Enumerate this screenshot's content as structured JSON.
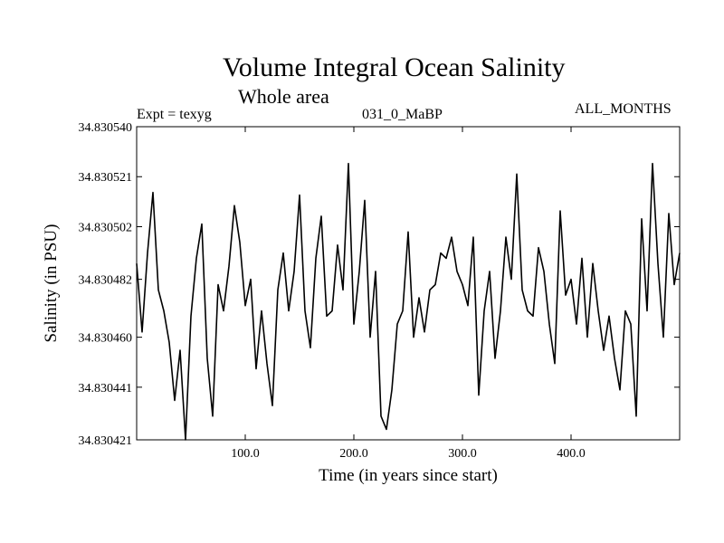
{
  "header": {
    "title": "Volume Integral Ocean Salinity",
    "subtitle": "Whole area",
    "expt_label": "Expt = texyg",
    "case_label": "031_0_MaBP",
    "months_label": "ALL_MONTHS"
  },
  "chart_data": {
    "type": "line",
    "title": "Volume Integral Ocean Salinity",
    "subtitle": "Whole area",
    "xlabel": "Time (in years since start)",
    "ylabel": "Salinity (in PSU)",
    "xlim": [
      0,
      500
    ],
    "ylim": [
      34.830421,
      34.83054
    ],
    "xticks": [
      100,
      200,
      300,
      400
    ],
    "xtick_labels": [
      "100.0",
      "200.0",
      "300.0",
      "400.0"
    ],
    "yticks": [
      34.83054,
      34.830521,
      34.830502,
      34.830482,
      34.83046,
      34.830441,
      34.830421
    ],
    "ytick_labels": [
      "34.830540",
      "34.830521",
      "34.830502",
      "34.830482",
      "34.830460",
      "34.830441",
      "34.830421"
    ],
    "grid": false,
    "series": [
      {
        "color": "#000000",
        "x": [
          0,
          5,
          10,
          15,
          20,
          25,
          30,
          35,
          40,
          45,
          50,
          55,
          60,
          65,
          70,
          75,
          80,
          85,
          90,
          95,
          100,
          105,
          110,
          115,
          120,
          125,
          130,
          135,
          140,
          145,
          150,
          155,
          160,
          165,
          170,
          175,
          180,
          185,
          190,
          195,
          200,
          205,
          210,
          215,
          220,
          225,
          230,
          235,
          240,
          245,
          250,
          255,
          260,
          265,
          270,
          275,
          280,
          285,
          290,
          295,
          300,
          305,
          310,
          315,
          320,
          325,
          330,
          335,
          340,
          345,
          350,
          355,
          360,
          365,
          370,
          375,
          380,
          385,
          390,
          395,
          400,
          405,
          410,
          415,
          420,
          425,
          430,
          435,
          440,
          445,
          450,
          455,
          460,
          465,
          470,
          475,
          480,
          485,
          490,
          495,
          500
        ],
        "y": [
          34.830488,
          34.830462,
          34.830492,
          34.830515,
          34.830478,
          34.83047,
          34.830458,
          34.830436,
          34.830455,
          34.830421,
          34.830468,
          34.83049,
          34.830503,
          34.830452,
          34.83043,
          34.83048,
          34.83047,
          34.830487,
          34.83051,
          34.830496,
          34.830472,
          34.830482,
          34.830448,
          34.83047,
          34.83045,
          34.830434,
          34.830478,
          34.830492,
          34.83047,
          34.830485,
          34.830514,
          34.83047,
          34.830456,
          34.83049,
          34.830506,
          34.830468,
          34.83047,
          34.830495,
          34.830478,
          34.830526,
          34.830465,
          34.830485,
          34.830512,
          34.83046,
          34.830485,
          34.83043,
          34.830425,
          34.83044,
          34.830465,
          34.83047,
          34.8305,
          34.83046,
          34.830475,
          34.830462,
          34.830478,
          34.83048,
          34.830492,
          34.83049,
          34.830498,
          34.830485,
          34.83048,
          34.830472,
          34.830498,
          34.830438,
          34.83047,
          34.830485,
          34.830452,
          34.83047,
          34.830498,
          34.830482,
          34.830522,
          34.830478,
          34.83047,
          34.830468,
          34.830494,
          34.830485,
          34.830465,
          34.83045,
          34.830508,
          34.830476,
          34.830482,
          34.830465,
          34.83049,
          34.83046,
          34.830488,
          34.83047,
          34.830455,
          34.830468,
          34.830452,
          34.83044,
          34.83047,
          34.830465,
          34.83043,
          34.830505,
          34.83047,
          34.830526,
          34.830488,
          34.83046,
          34.830507,
          34.83048,
          34.830492
        ]
      }
    ]
  }
}
